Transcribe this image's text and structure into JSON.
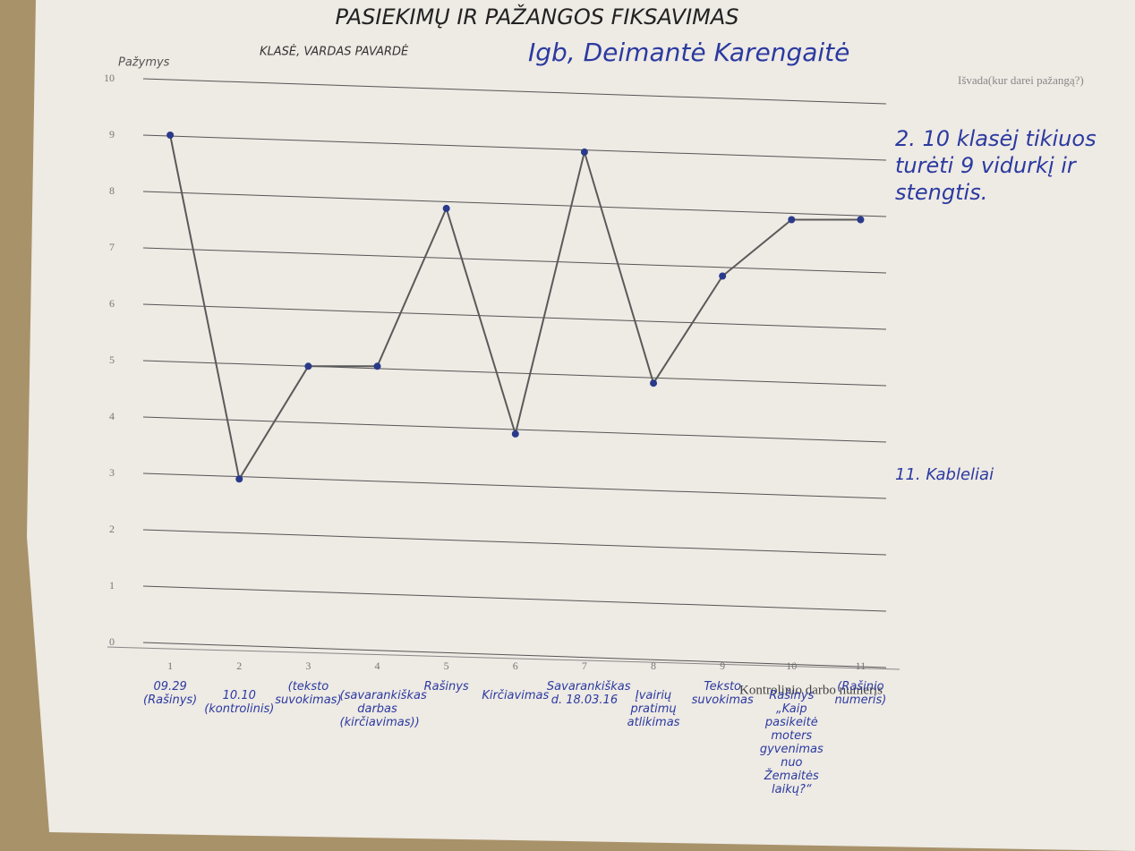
{
  "chart_data": {
    "type": "line",
    "title": "PASIEKIMŲ IR PAŽANGOS FIKSAVIMAS",
    "subtitle": "KLASĖ, VARDAS PAVARDĖ",
    "student": "Igb, Deimantė Karengaitė",
    "y_label": "Pažymys",
    "x_label": "Kontrolinio darbo numeris",
    "conclusion_heading": "Išvada(kur darei pažangą?)",
    "notes": [
      "2. 10 klasėj tikiuos turėti 9 vidurkį ir stengtis.",
      "11. Kableliai"
    ],
    "captions": [
      "09.29 (Rašinys)",
      "10.10 (kontrolinis)",
      "(teksto suvokimas)",
      "(savarankiškas darbas (kirčiavimas))",
      "Rašinys",
      "Kirčiavimas",
      "Savarankiškas d. 18.03.16",
      "Įvairių pratimų atlikimas",
      "Teksto suvokimas",
      "Rašinys „Kaip pasikeitė moters gyvenimas nuo Žemaitės laikų?“",
      "(Rašinio numeris)"
    ],
    "x": [
      1,
      2,
      3,
      4,
      5,
      6,
      7,
      8,
      9,
      10,
      11
    ],
    "series": [
      {
        "name": "Pažymys",
        "color": "#5a5a5a",
        "marker_color": "#2a3a8a",
        "values": [
          9,
          2.9,
          4.9,
          4.9,
          7.7,
          3.7,
          8.7,
          4.6,
          6.5,
          7.5,
          7.5
        ]
      }
    ],
    "xlim": [
      0,
      11.5
    ],
    "xticks": [
      1,
      2,
      3,
      4,
      5,
      6,
      7,
      8,
      9,
      10,
      11
    ],
    "ylim": [
      0,
      10
    ],
    "yticks": [
      0,
      1,
      2,
      3,
      4,
      5,
      6,
      7,
      8,
      9,
      10
    ],
    "grid": true
  }
}
